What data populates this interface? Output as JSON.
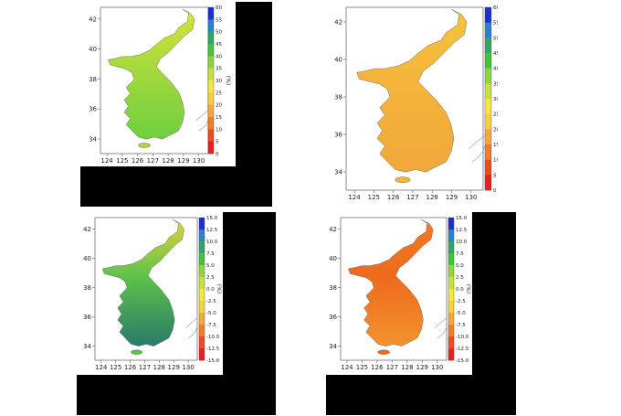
{
  "colors": {
    "background": "#ffffff",
    "shadow": "#000000",
    "coast": "#9a9a9a",
    "scale_top_to_bottom": [
      "#1a2fd6",
      "#2f7fd0",
      "#2fa866",
      "#44c23a",
      "#8fd63a",
      "#c9e23a",
      "#f5e83a",
      "#f7d23a",
      "#f5a93a",
      "#f37b2a",
      "#ef4a22",
      "#e8201e"
    ]
  },
  "panels": [
    {
      "id": "top-left",
      "fill": [
        "#d7e33a",
        "#a6d93c",
        "#6fcf3f"
      ],
      "colorbar": {
        "ticks": [
          "60",
          "55",
          "50",
          "45",
          "40",
          "35",
          "30",
          "25",
          "20",
          "15",
          "10",
          "5",
          "0"
        ],
        "unit": "(%)"
      },
      "x_ticks": [
        "124",
        "125",
        "126",
        "127",
        "128",
        "129",
        "130"
      ],
      "y_ticks": [
        "42",
        "40",
        "38",
        "36",
        "34"
      ]
    },
    {
      "id": "top-right",
      "fill": [
        "#f5c43a",
        "#f4b43a",
        "#f0a83a"
      ],
      "colorbar": {
        "ticks": [
          "60",
          "55",
          "50",
          "45",
          "40",
          "35",
          "30",
          "25",
          "20",
          "15",
          "10",
          "5",
          "0"
        ],
        "unit": "(%)"
      },
      "x_ticks": [
        "124",
        "125",
        "126",
        "127",
        "128",
        "129",
        "130"
      ],
      "y_ticks": [
        "42",
        "40",
        "38",
        "36",
        "34"
      ]
    },
    {
      "id": "bottom-left",
      "fill": [
        "#e0d23a",
        "#5ec24a",
        "#2a7a6a"
      ],
      "colorbar": {
        "ticks": [
          "15.0",
          "12.5",
          "10.0",
          "7.5",
          "5.0",
          "2.5",
          "0.0",
          "-2.5",
          "-5.0",
          "-7.5",
          "-10.0",
          "-12.5",
          "-15.0"
        ],
        "unit": "(%)"
      },
      "x_ticks": [
        "124",
        "125",
        "126",
        "127",
        "128",
        "129",
        "130"
      ],
      "y_ticks": [
        "42",
        "40",
        "38",
        "36",
        "34"
      ]
    },
    {
      "id": "bottom-right",
      "fill": [
        "#f07a22",
        "#ee6a1e",
        "#f3932e"
      ],
      "colorbar": {
        "ticks": [
          "15.0",
          "12.5",
          "10.0",
          "7.5",
          "5.0",
          "2.5",
          "0.0",
          "-2.5",
          "-5.0",
          "-7.5",
          "-10.0",
          "-12.5",
          "-15.0"
        ],
        "unit": "(%)"
      },
      "x_ticks": [
        "124",
        "125",
        "126",
        "127",
        "128",
        "129",
        "130"
      ],
      "y_ticks": [
        "42",
        "40",
        "38",
        "36",
        "34"
      ]
    }
  ]
}
